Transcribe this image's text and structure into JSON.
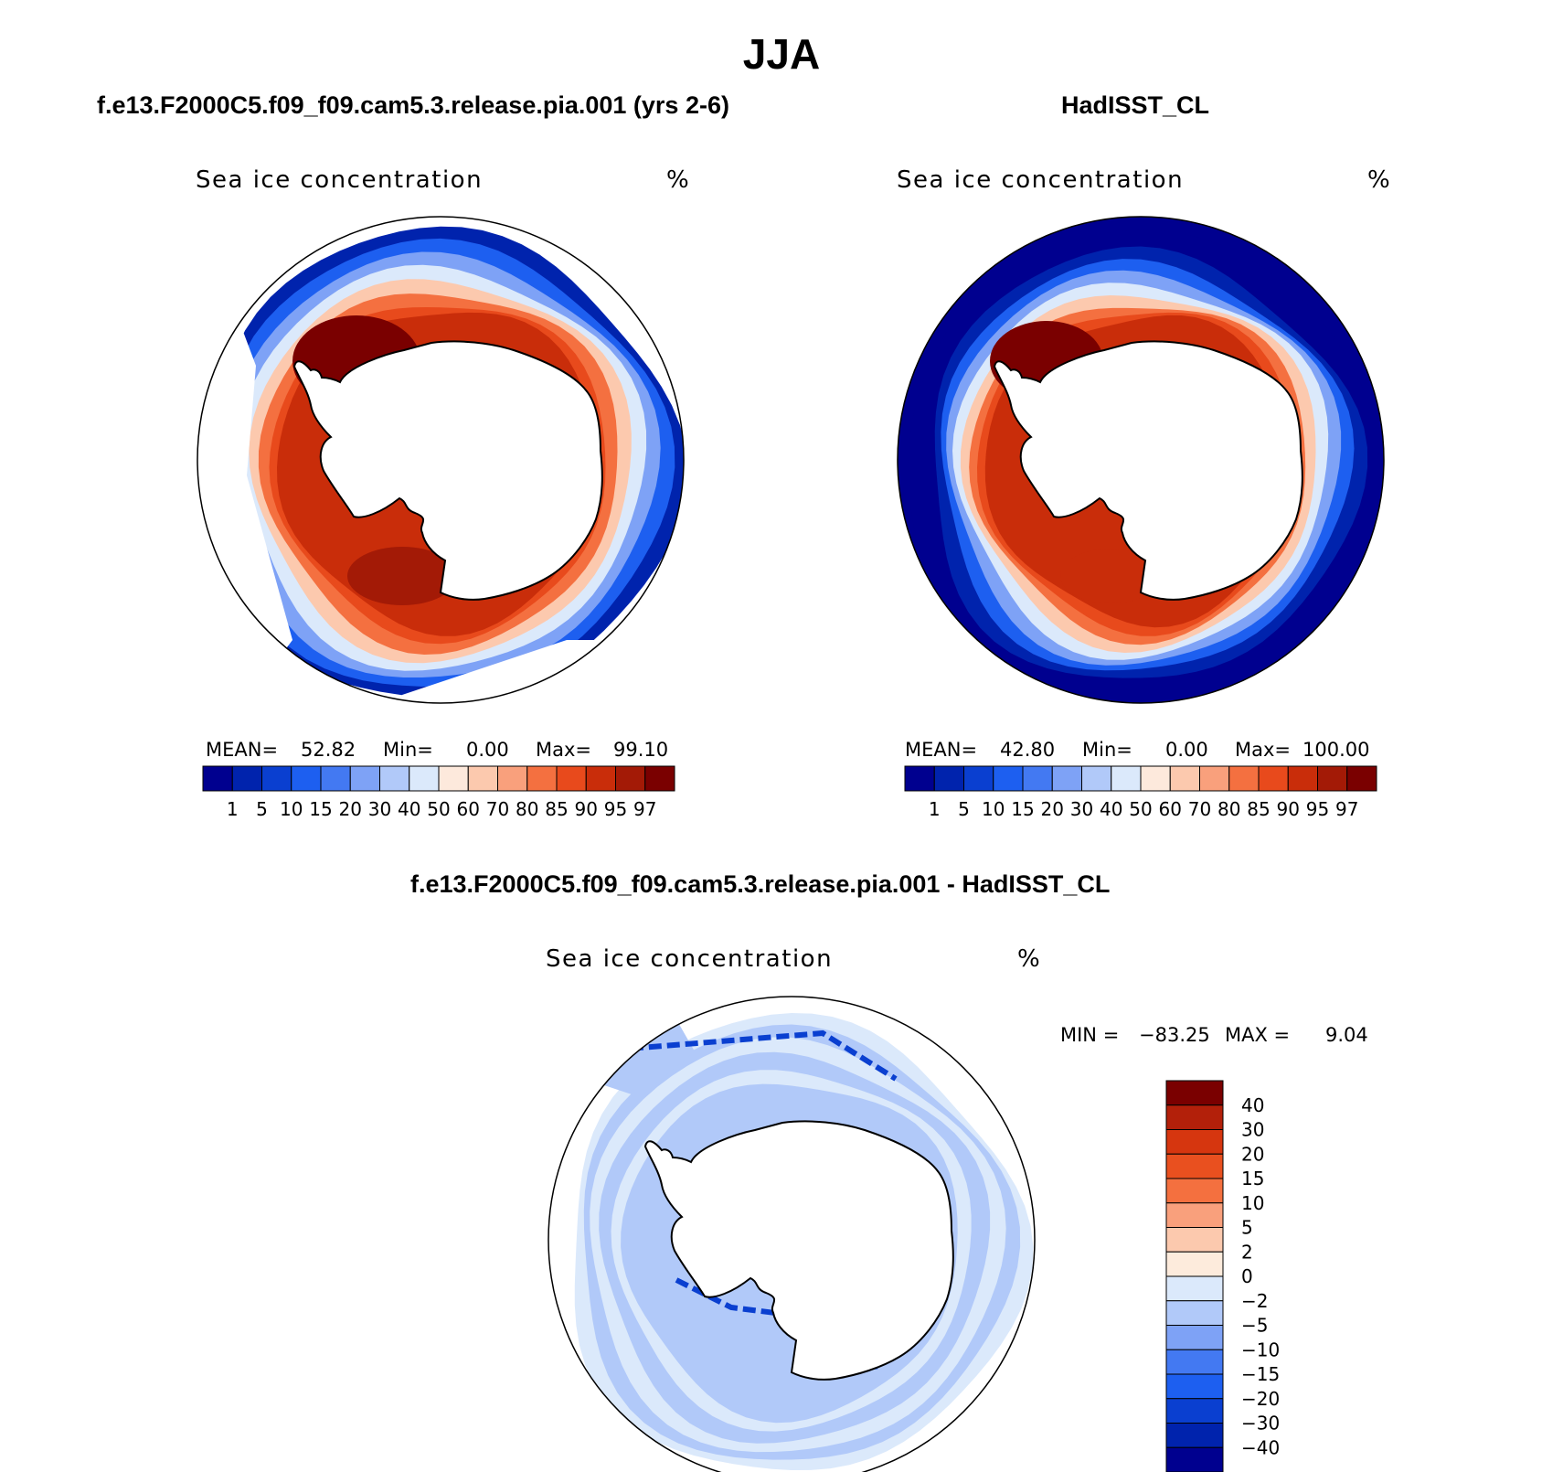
{
  "figure": {
    "season": "JJA"
  },
  "panels": [
    {
      "title": "f.e13.F2000C5.f09_f09.cam5.3.release.pia.001 (yrs 2-6)",
      "subtitle": "Sea ice concentration",
      "units": "%",
      "stats": {
        "mean_label": "MEAN=",
        "mean": "52.82",
        "min_label": "Min=",
        "min": "0.00",
        "max_label": "Max=",
        "max": "99.10"
      }
    },
    {
      "title": "HadISST_CL",
      "subtitle": "Sea ice concentration",
      "units": "%",
      "stats": {
        "mean_label": "MEAN=",
        "mean": "42.80",
        "min_label": "Min=",
        "min": "0.00",
        "max_label": "Max=",
        "max": "100.00"
      }
    },
    {
      "title": "f.e13.F2000C5.f09_f09.cam5.3.release.pia.001 - HadISST_CL",
      "subtitle": "Sea ice concentration",
      "units": "%",
      "stats": {
        "min_label": "MIN =",
        "min": "−83.25",
        "max_label": "MAX =",
        "max": "9.04"
      }
    }
  ],
  "chart_data": [
    {
      "type": "heatmap",
      "projection": "south-polar-stereographic",
      "title": "f.e13.F2000C5.f09_f09.cam5.3.release.pia.001 (yrs 2-6)",
      "variable": "Sea ice concentration",
      "units": "%",
      "legend": {
        "levels": [
          "1",
          "5",
          "10",
          "15",
          "20",
          "30",
          "40",
          "50",
          "60",
          "70",
          "80",
          "85",
          "90",
          "95",
          "97"
        ],
        "colors": [
          "#00008f",
          "#0023ad",
          "#0a3fd0",
          "#1d5ff0",
          "#4379f2",
          "#7ea2f6",
          "#b1c9f9",
          "#dbe9fb",
          "#fde9dc",
          "#fcc9ae",
          "#f9a07c",
          "#f47040",
          "#e84a1c",
          "#c92d0a",
          "#a31a06",
          "#7a0000"
        ]
      },
      "stats": {
        "mean": 52.82,
        "min": 0.0,
        "max": 99.1
      }
    },
    {
      "type": "heatmap",
      "projection": "south-polar-stereographic",
      "title": "HadISST_CL",
      "variable": "Sea ice concentration",
      "units": "%",
      "legend": {
        "levels": [
          "1",
          "5",
          "10",
          "15",
          "20",
          "30",
          "40",
          "50",
          "60",
          "70",
          "80",
          "85",
          "90",
          "95",
          "97"
        ],
        "colors": [
          "#00008f",
          "#0023ad",
          "#0a3fd0",
          "#1d5ff0",
          "#4379f2",
          "#7ea2f6",
          "#b1c9f9",
          "#dbe9fb",
          "#fde9dc",
          "#fcc9ae",
          "#f9a07c",
          "#f47040",
          "#e84a1c",
          "#c92d0a",
          "#a31a06",
          "#7a0000"
        ]
      },
      "stats": {
        "mean": 42.8,
        "min": 0.0,
        "max": 100.0
      }
    },
    {
      "type": "heatmap",
      "projection": "south-polar-stereographic",
      "title": "f.e13.F2000C5.f09_f09.cam5.3.release.pia.001 - HadISST_CL",
      "variable": "Sea ice concentration",
      "units": "%",
      "legend": {
        "levels": [
          "40",
          "30",
          "20",
          "15",
          "10",
          "5",
          "2",
          "0",
          "−2",
          "−5",
          "−10",
          "−15",
          "−20",
          "−30",
          "−40"
        ],
        "colors": [
          "#7a0000",
          "#b3200a",
          "#d6360f",
          "#e9501f",
          "#f4703f",
          "#f9a07c",
          "#fcc9ae",
          "#fdebdc",
          "#dbe9fb",
          "#b1c9f9",
          "#7ea2f6",
          "#4379f2",
          "#1d5ff0",
          "#0a3fd0",
          "#0023ad",
          "#00008f"
        ]
      },
      "stats": {
        "min": -83.25,
        "max": 9.04
      }
    }
  ]
}
